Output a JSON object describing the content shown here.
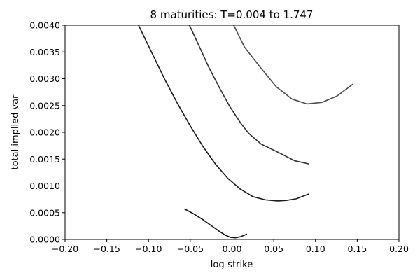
{
  "chart_data": {
    "type": "line",
    "title": "8 maturities: T=0.004 to 1.747",
    "xlabel": "log-strike",
    "ylabel": "total implied var",
    "xlim": [
      -0.2,
      0.2
    ],
    "ylim": [
      0,
      0.004
    ],
    "xticks": [
      "−0.20",
      "−0.15",
      "−0.10",
      "−0.05",
      "0.00",
      "0.05",
      "0.10",
      "0.15",
      "0.20"
    ],
    "yticks": [
      "0.0000",
      "0.0005",
      "0.0010",
      "0.0015",
      "0.0020",
      "0.0025",
      "0.0030",
      "0.0035",
      "0.0040"
    ],
    "grid": false,
    "series": [
      {
        "color": "#111111",
        "x": [
          -0.057,
          -0.045,
          -0.035,
          -0.025,
          -0.015,
          -0.008,
          -0.002,
          0.004,
          0.01,
          0.018
        ],
        "y": [
          0.00057,
          0.00047,
          0.00037,
          0.00026,
          0.00015,
          8e-05,
          4e-05,
          3e-05,
          5e-05,
          0.0001
        ]
      },
      {
        "color": "#1a1a1a",
        "x": [
          -0.112,
          -0.095,
          -0.08,
          -0.065,
          -0.05,
          -0.035,
          -0.02,
          -0.005,
          0.01,
          0.025,
          0.04,
          0.055,
          0.065,
          0.077,
          0.092
        ],
        "y": [
          0.004,
          0.00345,
          0.00297,
          0.00253,
          0.00212,
          0.00174,
          0.00141,
          0.00114,
          0.00094,
          0.0008,
          0.00074,
          0.00072,
          0.00073,
          0.00076,
          0.00085
        ]
      },
      {
        "color": "#2e2e2e",
        "x": [
          -0.051,
          -0.04,
          -0.028,
          -0.015,
          -0.003,
          0.01,
          0.02,
          0.035,
          0.055,
          0.075,
          0.092
        ],
        "y": [
          0.004,
          0.00363,
          0.00322,
          0.00283,
          0.00249,
          0.00218,
          0.00198,
          0.00178,
          0.00163,
          0.00147,
          0.00141
        ]
      },
      {
        "color": "#4a4a4a",
        "x": [
          0.002,
          0.015,
          0.033,
          0.053,
          0.072,
          0.09,
          0.108,
          0.126,
          0.145
        ],
        "y": [
          0.004,
          0.00359,
          0.00323,
          0.00285,
          0.00262,
          0.00253,
          0.00256,
          0.00268,
          0.0029
        ]
      }
    ]
  }
}
